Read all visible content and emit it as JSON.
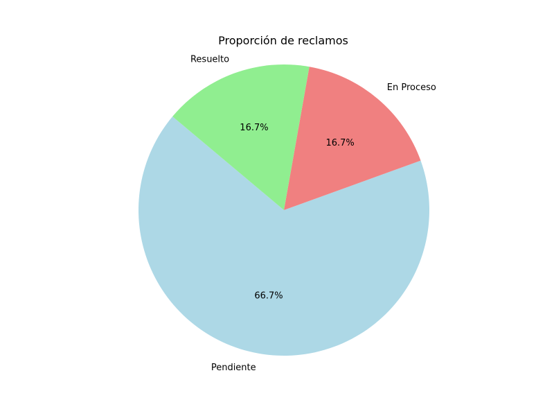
{
  "chart_data": {
    "type": "pie",
    "title": "Proporción de reclamos",
    "categories": [
      "Pendiente",
      "En Proceso",
      "Resuelto"
    ],
    "values": [
      66.7,
      16.7,
      16.7
    ],
    "percent_labels": [
      "66.7%",
      "16.7%",
      "16.7%"
    ],
    "colors": [
      "#add8e6",
      "#f08080",
      "#90ee90"
    ],
    "start_angle_deg": 140,
    "direction": "counterclockwise",
    "legend": "none"
  }
}
